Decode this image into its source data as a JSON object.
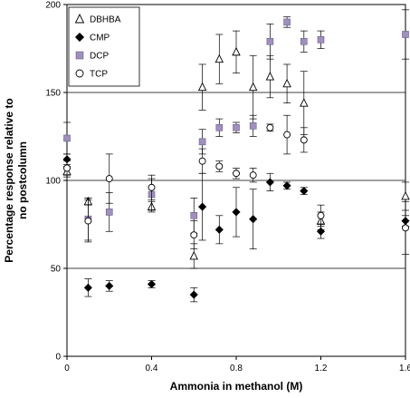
{
  "chart_data": {
    "type": "scatter",
    "title": "",
    "xlabel": "Ammonia in methanol (M)",
    "ylabel": "Percentage response relative to no postcolumn",
    "xlim": [
      0,
      1.6
    ],
    "ylim": [
      0,
      200
    ],
    "x_ticks": [
      "0",
      "0.4",
      "0.8",
      "1.2",
      "1.6"
    ],
    "y_ticks": [
      "0",
      "50",
      "100",
      "150",
      "200"
    ],
    "grid": "horizontal",
    "legend_position": "top-left",
    "series": [
      {
        "name": "DBHBA",
        "marker": "triangle-open",
        "color": "#000000",
        "points": [
          {
            "x": 0.0,
            "y": 105,
            "err": 3
          },
          {
            "x": 0.1,
            "y": 88,
            "err": 2
          },
          {
            "x": 0.4,
            "y": 85,
            "err": 3
          },
          {
            "x": 0.6,
            "y": 57,
            "err": 7
          },
          {
            "x": 0.64,
            "y": 153,
            "err": 13
          },
          {
            "x": 0.72,
            "y": 169,
            "err": 14
          },
          {
            "x": 0.8,
            "y": 173,
            "err": 12
          },
          {
            "x": 0.88,
            "y": 153,
            "err": 18
          },
          {
            "x": 0.96,
            "y": 159,
            "err": 12
          },
          {
            "x": 1.04,
            "y": 155,
            "err": 11
          },
          {
            "x": 1.12,
            "y": 144,
            "err": 18
          },
          {
            "x": 1.2,
            "y": 77,
            "err": 5
          },
          {
            "x": 1.6,
            "y": 91,
            "err": 8
          }
        ]
      },
      {
        "name": "CMP",
        "marker": "diamond-filled",
        "color": "#000000",
        "points": [
          {
            "x": 0.0,
            "y": 112,
            "err": 3
          },
          {
            "x": 0.1,
            "y": 39,
            "err": 5
          },
          {
            "x": 0.2,
            "y": 40,
            "err": 3
          },
          {
            "x": 0.4,
            "y": 41,
            "err": 2
          },
          {
            "x": 0.6,
            "y": 35,
            "err": 4
          },
          {
            "x": 0.64,
            "y": 85,
            "err": 19
          },
          {
            "x": 0.72,
            "y": 72,
            "err": 8
          },
          {
            "x": 0.8,
            "y": 82,
            "err": 14
          },
          {
            "x": 0.88,
            "y": 78,
            "err": 17
          },
          {
            "x": 0.96,
            "y": 99,
            "err": 5
          },
          {
            "x": 1.04,
            "y": 97,
            "err": 2
          },
          {
            "x": 1.12,
            "y": 94,
            "err": 2
          },
          {
            "x": 1.2,
            "y": 71,
            "err": 4
          },
          {
            "x": 1.6,
            "y": 77,
            "err": 3
          }
        ]
      },
      {
        "name": "DCP",
        "marker": "square-filled",
        "color": "#a090c0",
        "points": [
          {
            "x": 0.0,
            "y": 124,
            "err": 9
          },
          {
            "x": 0.1,
            "y": 78,
            "err": 12
          },
          {
            "x": 0.2,
            "y": 82,
            "err": 11
          },
          {
            "x": 0.4,
            "y": 92,
            "err": 9
          },
          {
            "x": 0.6,
            "y": 80,
            "err": 10
          },
          {
            "x": 0.64,
            "y": 122,
            "err": 7
          },
          {
            "x": 0.72,
            "y": 130,
            "err": 5
          },
          {
            "x": 0.8,
            "y": 130,
            "err": 3
          },
          {
            "x": 0.88,
            "y": 131,
            "err": 6
          },
          {
            "x": 0.96,
            "y": 179,
            "err": 10
          },
          {
            "x": 1.04,
            "y": 190,
            "err": 3
          },
          {
            "x": 1.12,
            "y": 179,
            "err": 6
          },
          {
            "x": 1.2,
            "y": 180,
            "err": 5
          },
          {
            "x": 1.6,
            "y": 183,
            "err": 14
          }
        ]
      },
      {
        "name": "TCP",
        "marker": "circle-open",
        "color": "#000000",
        "points": [
          {
            "x": 0.0,
            "y": 107,
            "err": 4
          },
          {
            "x": 0.1,
            "y": 77,
            "err": 12
          },
          {
            "x": 0.2,
            "y": 101,
            "err": 14
          },
          {
            "x": 0.4,
            "y": 96,
            "err": 7
          },
          {
            "x": 0.6,
            "y": 69,
            "err": 8
          },
          {
            "x": 0.64,
            "y": 111,
            "err": 7
          },
          {
            "x": 0.72,
            "y": 108,
            "err": 3
          },
          {
            "x": 0.8,
            "y": 104,
            "err": 3
          },
          {
            "x": 0.88,
            "y": 103,
            "err": 4
          },
          {
            "x": 0.96,
            "y": 130,
            "err": 2
          },
          {
            "x": 1.04,
            "y": 126,
            "err": 11
          },
          {
            "x": 1.12,
            "y": 123,
            "err": 7
          },
          {
            "x": 1.2,
            "y": 80,
            "err": 6
          },
          {
            "x": 1.6,
            "y": 73,
            "err": 15
          }
        ]
      }
    ]
  }
}
